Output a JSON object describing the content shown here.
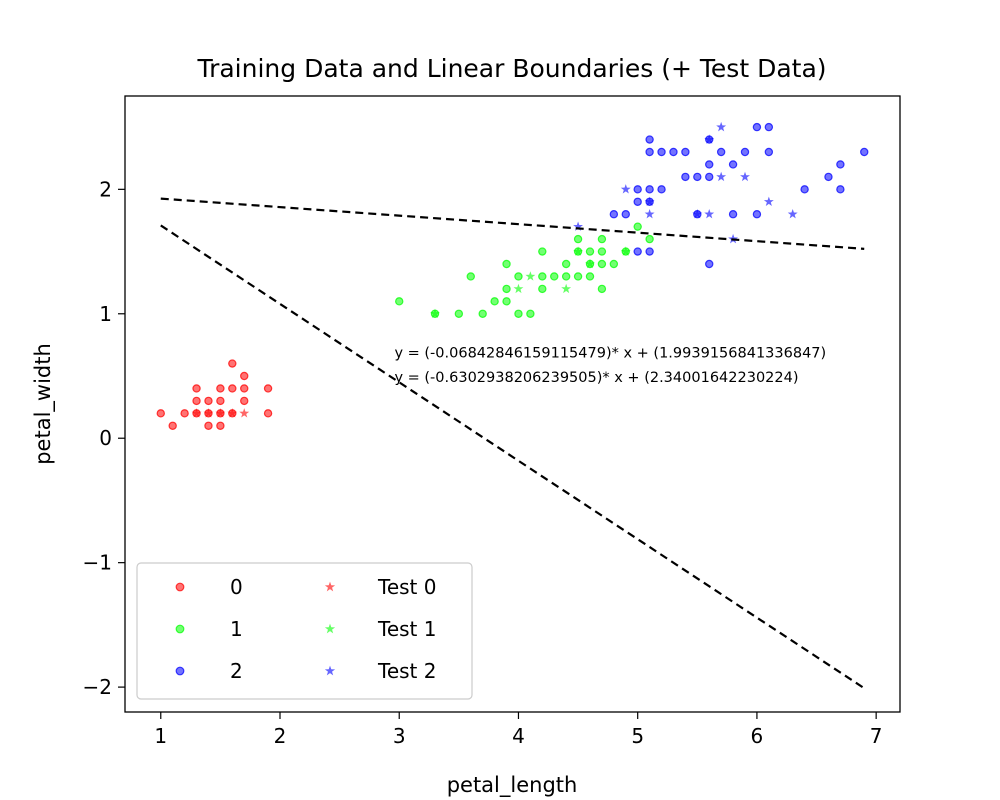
{
  "chart_data": {
    "type": "scatter",
    "title": "Training Data and Linear Boundaries (+ Test Data)",
    "xlabel": "petal_length",
    "ylabel": "petal_width",
    "xlim": [
      0.7,
      7.2
    ],
    "ylim": [
      -2.2,
      2.75
    ],
    "xticks": [
      1,
      2,
      3,
      4,
      5,
      6,
      7
    ],
    "yticks": [
      -2,
      -1,
      0,
      1,
      2
    ],
    "grid": false,
    "legend_placement": "lower-left",
    "legend_columns": 2,
    "series": [
      {
        "name": "0",
        "marker": "circle",
        "color": "#ff0000",
        "points": [
          [
            1.0,
            0.2
          ],
          [
            1.1,
            0.1
          ],
          [
            1.2,
            0.2
          ],
          [
            1.3,
            0.2
          ],
          [
            1.3,
            0.3
          ],
          [
            1.3,
            0.4
          ],
          [
            1.4,
            0.1
          ],
          [
            1.4,
            0.2
          ],
          [
            1.4,
            0.3
          ],
          [
            1.5,
            0.1
          ],
          [
            1.5,
            0.2
          ],
          [
            1.5,
            0.3
          ],
          [
            1.5,
            0.4
          ],
          [
            1.6,
            0.2
          ],
          [
            1.6,
            0.4
          ],
          [
            1.6,
            0.6
          ],
          [
            1.7,
            0.3
          ],
          [
            1.7,
            0.4
          ],
          [
            1.7,
            0.5
          ],
          [
            1.9,
            0.2
          ],
          [
            1.9,
            0.4
          ]
        ]
      },
      {
        "name": "1",
        "marker": "circle",
        "color": "#00ff00",
        "points": [
          [
            3.0,
            1.1
          ],
          [
            3.3,
            1.0
          ],
          [
            3.5,
            1.0
          ],
          [
            3.6,
            1.3
          ],
          [
            3.7,
            1.0
          ],
          [
            3.8,
            1.1
          ],
          [
            3.9,
            1.1
          ],
          [
            3.9,
            1.2
          ],
          [
            3.9,
            1.4
          ],
          [
            4.0,
            1.0
          ],
          [
            4.0,
            1.3
          ],
          [
            4.1,
            1.0
          ],
          [
            4.2,
            1.2
          ],
          [
            4.2,
            1.3
          ],
          [
            4.2,
            1.5
          ],
          [
            4.3,
            1.3
          ],
          [
            4.4,
            1.3
          ],
          [
            4.4,
            1.4
          ],
          [
            4.5,
            1.3
          ],
          [
            4.5,
            1.5
          ],
          [
            4.5,
            1.6
          ],
          [
            4.6,
            1.3
          ],
          [
            4.6,
            1.4
          ],
          [
            4.6,
            1.5
          ],
          [
            4.7,
            1.2
          ],
          [
            4.7,
            1.4
          ],
          [
            4.7,
            1.5
          ],
          [
            4.7,
            1.6
          ],
          [
            4.8,
            1.4
          ],
          [
            4.9,
            1.5
          ],
          [
            5.0,
            1.7
          ],
          [
            5.1,
            1.6
          ]
        ]
      },
      {
        "name": "2",
        "marker": "circle",
        "color": "#0000ff",
        "points": [
          [
            4.8,
            1.8
          ],
          [
            4.9,
            1.8
          ],
          [
            5.0,
            1.5
          ],
          [
            5.0,
            1.9
          ],
          [
            5.0,
            2.0
          ],
          [
            5.1,
            1.5
          ],
          [
            5.1,
            1.9
          ],
          [
            5.1,
            2.0
          ],
          [
            5.1,
            2.3
          ],
          [
            5.1,
            2.4
          ],
          [
            5.2,
            2.0
          ],
          [
            5.2,
            2.3
          ],
          [
            5.3,
            2.3
          ],
          [
            5.4,
            2.1
          ],
          [
            5.4,
            2.3
          ],
          [
            5.5,
            1.8
          ],
          [
            5.5,
            2.1
          ],
          [
            5.6,
            1.4
          ],
          [
            5.6,
            2.1
          ],
          [
            5.6,
            2.2
          ],
          [
            5.6,
            2.4
          ],
          [
            5.7,
            2.3
          ],
          [
            5.8,
            1.8
          ],
          [
            5.8,
            2.2
          ],
          [
            5.9,
            2.3
          ],
          [
            6.0,
            1.8
          ],
          [
            6.0,
            2.5
          ],
          [
            6.1,
            2.3
          ],
          [
            6.1,
            2.5
          ],
          [
            6.4,
            2.0
          ],
          [
            6.6,
            2.1
          ],
          [
            6.7,
            2.0
          ],
          [
            6.7,
            2.2
          ],
          [
            6.9,
            2.3
          ]
        ]
      },
      {
        "name": "Test 0",
        "marker": "star",
        "color": "#ff0000",
        "points": [
          [
            1.3,
            0.2
          ],
          [
            1.4,
            0.2
          ],
          [
            1.5,
            0.2
          ],
          [
            1.6,
            0.2
          ],
          [
            1.7,
            0.2
          ]
        ]
      },
      {
        "name": "Test 1",
        "marker": "star",
        "color": "#00ff00",
        "points": [
          [
            3.3,
            1.0
          ],
          [
            4.0,
            1.2
          ],
          [
            4.1,
            1.3
          ],
          [
            4.4,
            1.2
          ],
          [
            4.5,
            1.5
          ],
          [
            4.6,
            1.4
          ],
          [
            4.9,
            1.5
          ]
        ]
      },
      {
        "name": "Test 2",
        "marker": "star",
        "color": "#0000ff",
        "points": [
          [
            4.5,
            1.7
          ],
          [
            4.9,
            2.0
          ],
          [
            5.1,
            1.8
          ],
          [
            5.1,
            1.9
          ],
          [
            5.5,
            1.8
          ],
          [
            5.6,
            1.8
          ],
          [
            5.6,
            2.4
          ],
          [
            5.7,
            2.1
          ],
          [
            5.7,
            2.5
          ],
          [
            5.8,
            1.6
          ],
          [
            5.9,
            2.1
          ],
          [
            6.1,
            1.9
          ],
          [
            6.3,
            1.8
          ]
        ]
      }
    ],
    "lines": [
      {
        "slope": -0.06842846159115479,
        "intercept": 1.9939156841336847,
        "x_range": [
          1.0,
          6.9
        ]
      },
      {
        "slope": -0.6302938206239505,
        "intercept": 2.34001642230224,
        "x_range": [
          1.0,
          6.9
        ]
      }
    ],
    "annotations": [
      {
        "text": "y = (-0.06842846159115479)* x + (1.9939156841336847)",
        "x": 2.96,
        "y": 0.69
      },
      {
        "text": "y = (-0.6302938206239505)* x + (2.34001642230224)",
        "x": 2.96,
        "y": 0.49
      }
    ]
  }
}
